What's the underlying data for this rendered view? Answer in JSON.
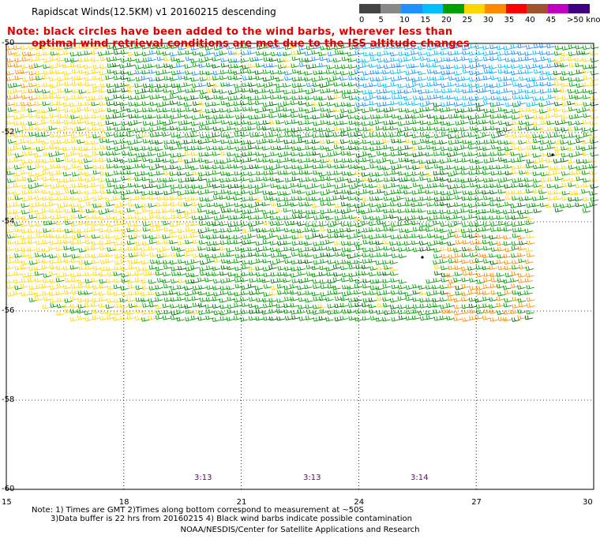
{
  "title": "Rapidscat Winds(12.5KM) v1 20160215 descending",
  "note_line1": "Note: black circles have been added to the wind barbs, wherever less than",
  "note_line2": "optimal wind retrieval conditions are met due to the ISS altitude changes",
  "color_scale": {
    "labels": [
      "0",
      "5",
      "10",
      "15",
      "20",
      "25",
      "30",
      "35",
      "40",
      "45",
      ">50 knots"
    ],
    "colors": [
      "#444444",
      "#888888",
      "#1e90ff",
      "#00bfff",
      "#00a000",
      "#ffd700",
      "#ff8c00",
      "#ff0000",
      "#a0522d",
      "#c000c0",
      "#400080"
    ]
  },
  "axes": {
    "lon_labels": [
      "15",
      "18",
      "21",
      "24",
      "27",
      "30"
    ],
    "lat_labels": [
      "-50",
      "-52",
      "-54",
      "-56",
      "-58",
      "-60"
    ]
  },
  "time_labels": [
    "3:13",
    "3:13",
    "3:14"
  ],
  "footnote_line1": "Note: 1) Times are GMT 2)Times along bottom correspond to measurement at ~50S",
  "footnote_line2": "3)Data buffer is 22 hrs from 20160215 4) Black wind barbs indicate possible contamination",
  "credit": "NOAA/NESDIS/Center for Satellite Applications and Research"
}
